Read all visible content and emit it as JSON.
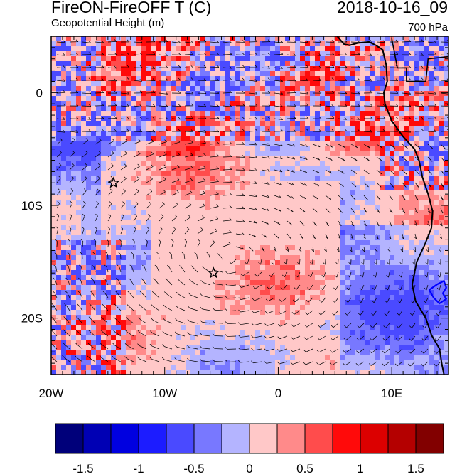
{
  "header": {
    "title": "FireON-FireOFF T (C)",
    "subtitle": "Geopotential Height (m)",
    "datetime": "2018-10-16_09",
    "level": "700 hPa"
  },
  "map": {
    "lon_range": [
      -20,
      15
    ],
    "lat_range": [
      -25,
      5
    ],
    "lon_tick_labels": [
      "20W",
      "10W",
      "0",
      "10E"
    ],
    "lat_tick_labels": [
      "0",
      "10S",
      "20S"
    ],
    "markers": [
      {
        "name": "star-marker-1",
        "lon": -14.5,
        "lat": -8
      },
      {
        "name": "star-marker-2",
        "lon": -5.7,
        "lat": -16
      }
    ]
  },
  "colorbar": {
    "labels": [
      "-1.5",
      "-1",
      "-0.5",
      "0",
      "0.5",
      "1",
      "1.5"
    ],
    "colors": [
      "#00007a",
      "#0000b4",
      "#0000e0",
      "#1c1cff",
      "#4a4aff",
      "#7878ff",
      "#b4b4ff",
      "#ffc8c8",
      "#ff8a8a",
      "#ff4c4c",
      "#ff0a0a",
      "#dc0000",
      "#b40000",
      "#820000"
    ]
  },
  "colors": {
    "background_pink": "#ffc8c8",
    "light_blue": "#b4b4ff",
    "coastline": "#000000",
    "lake_outline": "#0000ff"
  }
}
